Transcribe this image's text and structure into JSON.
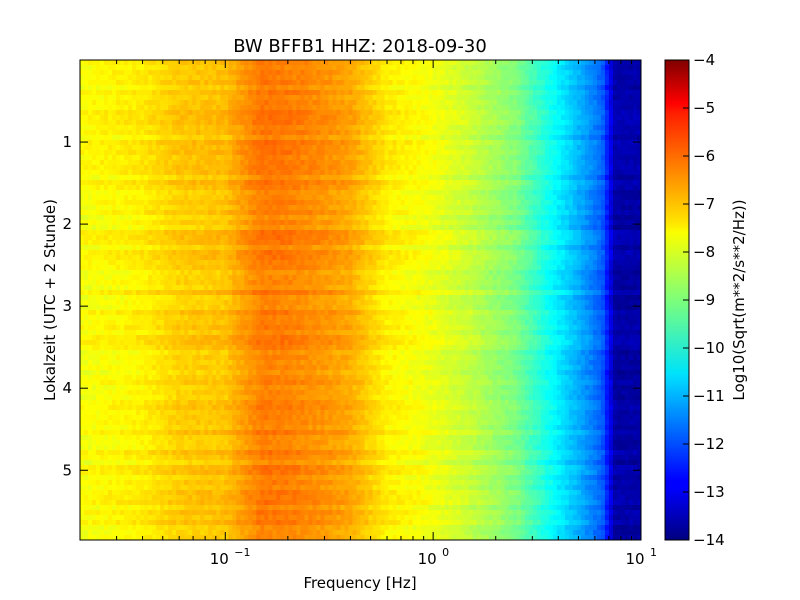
{
  "chart_data": {
    "type": "heatmap",
    "title": "BW BFFB1 HHZ: 2018-09-30",
    "xlabel": "Frequency [Hz]",
    "ylabel": "Lokalzeit (UTC + 2 Stunde)",
    "x_scale": "log",
    "xlim": [
      0.02,
      10
    ],
    "ylim": [
      5.85,
      0.0
    ],
    "x_ticks": [
      {
        "value": 0.1,
        "base": "10",
        "exp": "−1"
      },
      {
        "value": 1,
        "base": "10",
        "exp": "0"
      },
      {
        "value": 10,
        "base": "10",
        "exp": "1"
      }
    ],
    "y_ticks": [
      "1",
      "2",
      "3",
      "4",
      "5"
    ],
    "y_tick_values": [
      1,
      2,
      3,
      4,
      5
    ],
    "colorbar": {
      "label": "Log10(Sqrt(m**2/s**2/Hz))",
      "range": [
        -14,
        -4
      ],
      "ticks": [
        "−4",
        "−5",
        "−6",
        "−7",
        "−8",
        "−9",
        "−10",
        "−11",
        "−12",
        "−13",
        "−14"
      ],
      "tick_values": [
        -4,
        -5,
        -6,
        -7,
        -8,
        -9,
        -10,
        -11,
        -12,
        -13,
        -14
      ],
      "colormap": "jet"
    },
    "spectrum_profile": {
      "frequency_hz": [
        0.02,
        0.04,
        0.06,
        0.1,
        0.12,
        0.15,
        0.2,
        0.3,
        0.4,
        0.6,
        1.0,
        1.5,
        2.5,
        3.5,
        5.0,
        6.5,
        7.5,
        10
      ],
      "log10_amplitude": [
        -7.8,
        -7.6,
        -7.25,
        -7.15,
        -6.8,
        -6.45,
        -6.5,
        -6.7,
        -6.9,
        -7.6,
        -7.9,
        -8.3,
        -9.0,
        -10.0,
        -11.0,
        -11.8,
        -13.6,
        -13.6
      ]
    },
    "grid": false
  }
}
